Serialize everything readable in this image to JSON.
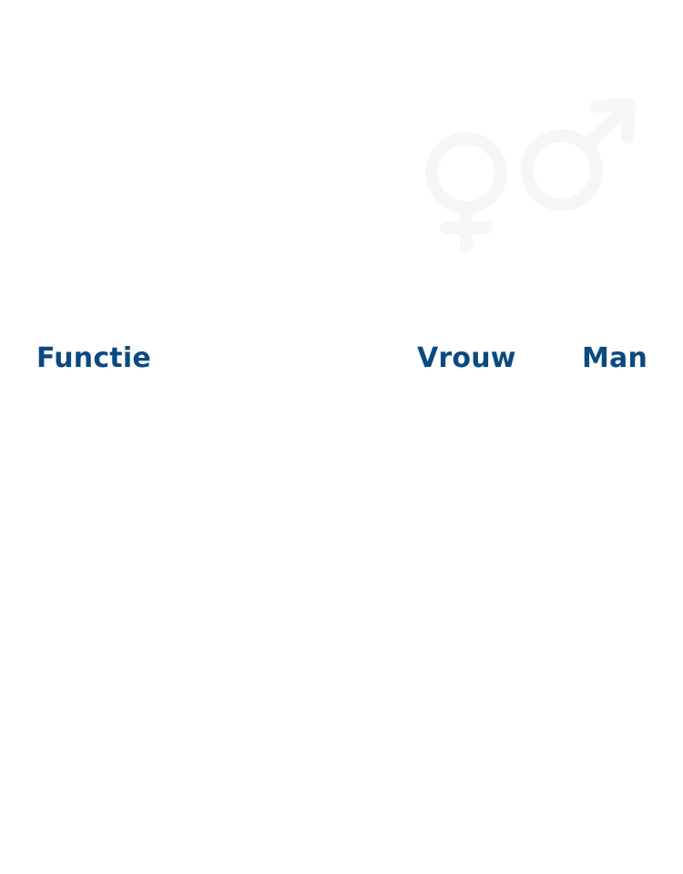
{
  "colors": {
    "header_text": "#0b4a80",
    "watermark": "#f6f6f6"
  },
  "watermark": {
    "icon": "female-male-symbols-icon"
  },
  "table_header": {
    "functie": "Functie",
    "vrouw": "Vrouw",
    "man": "Man"
  }
}
